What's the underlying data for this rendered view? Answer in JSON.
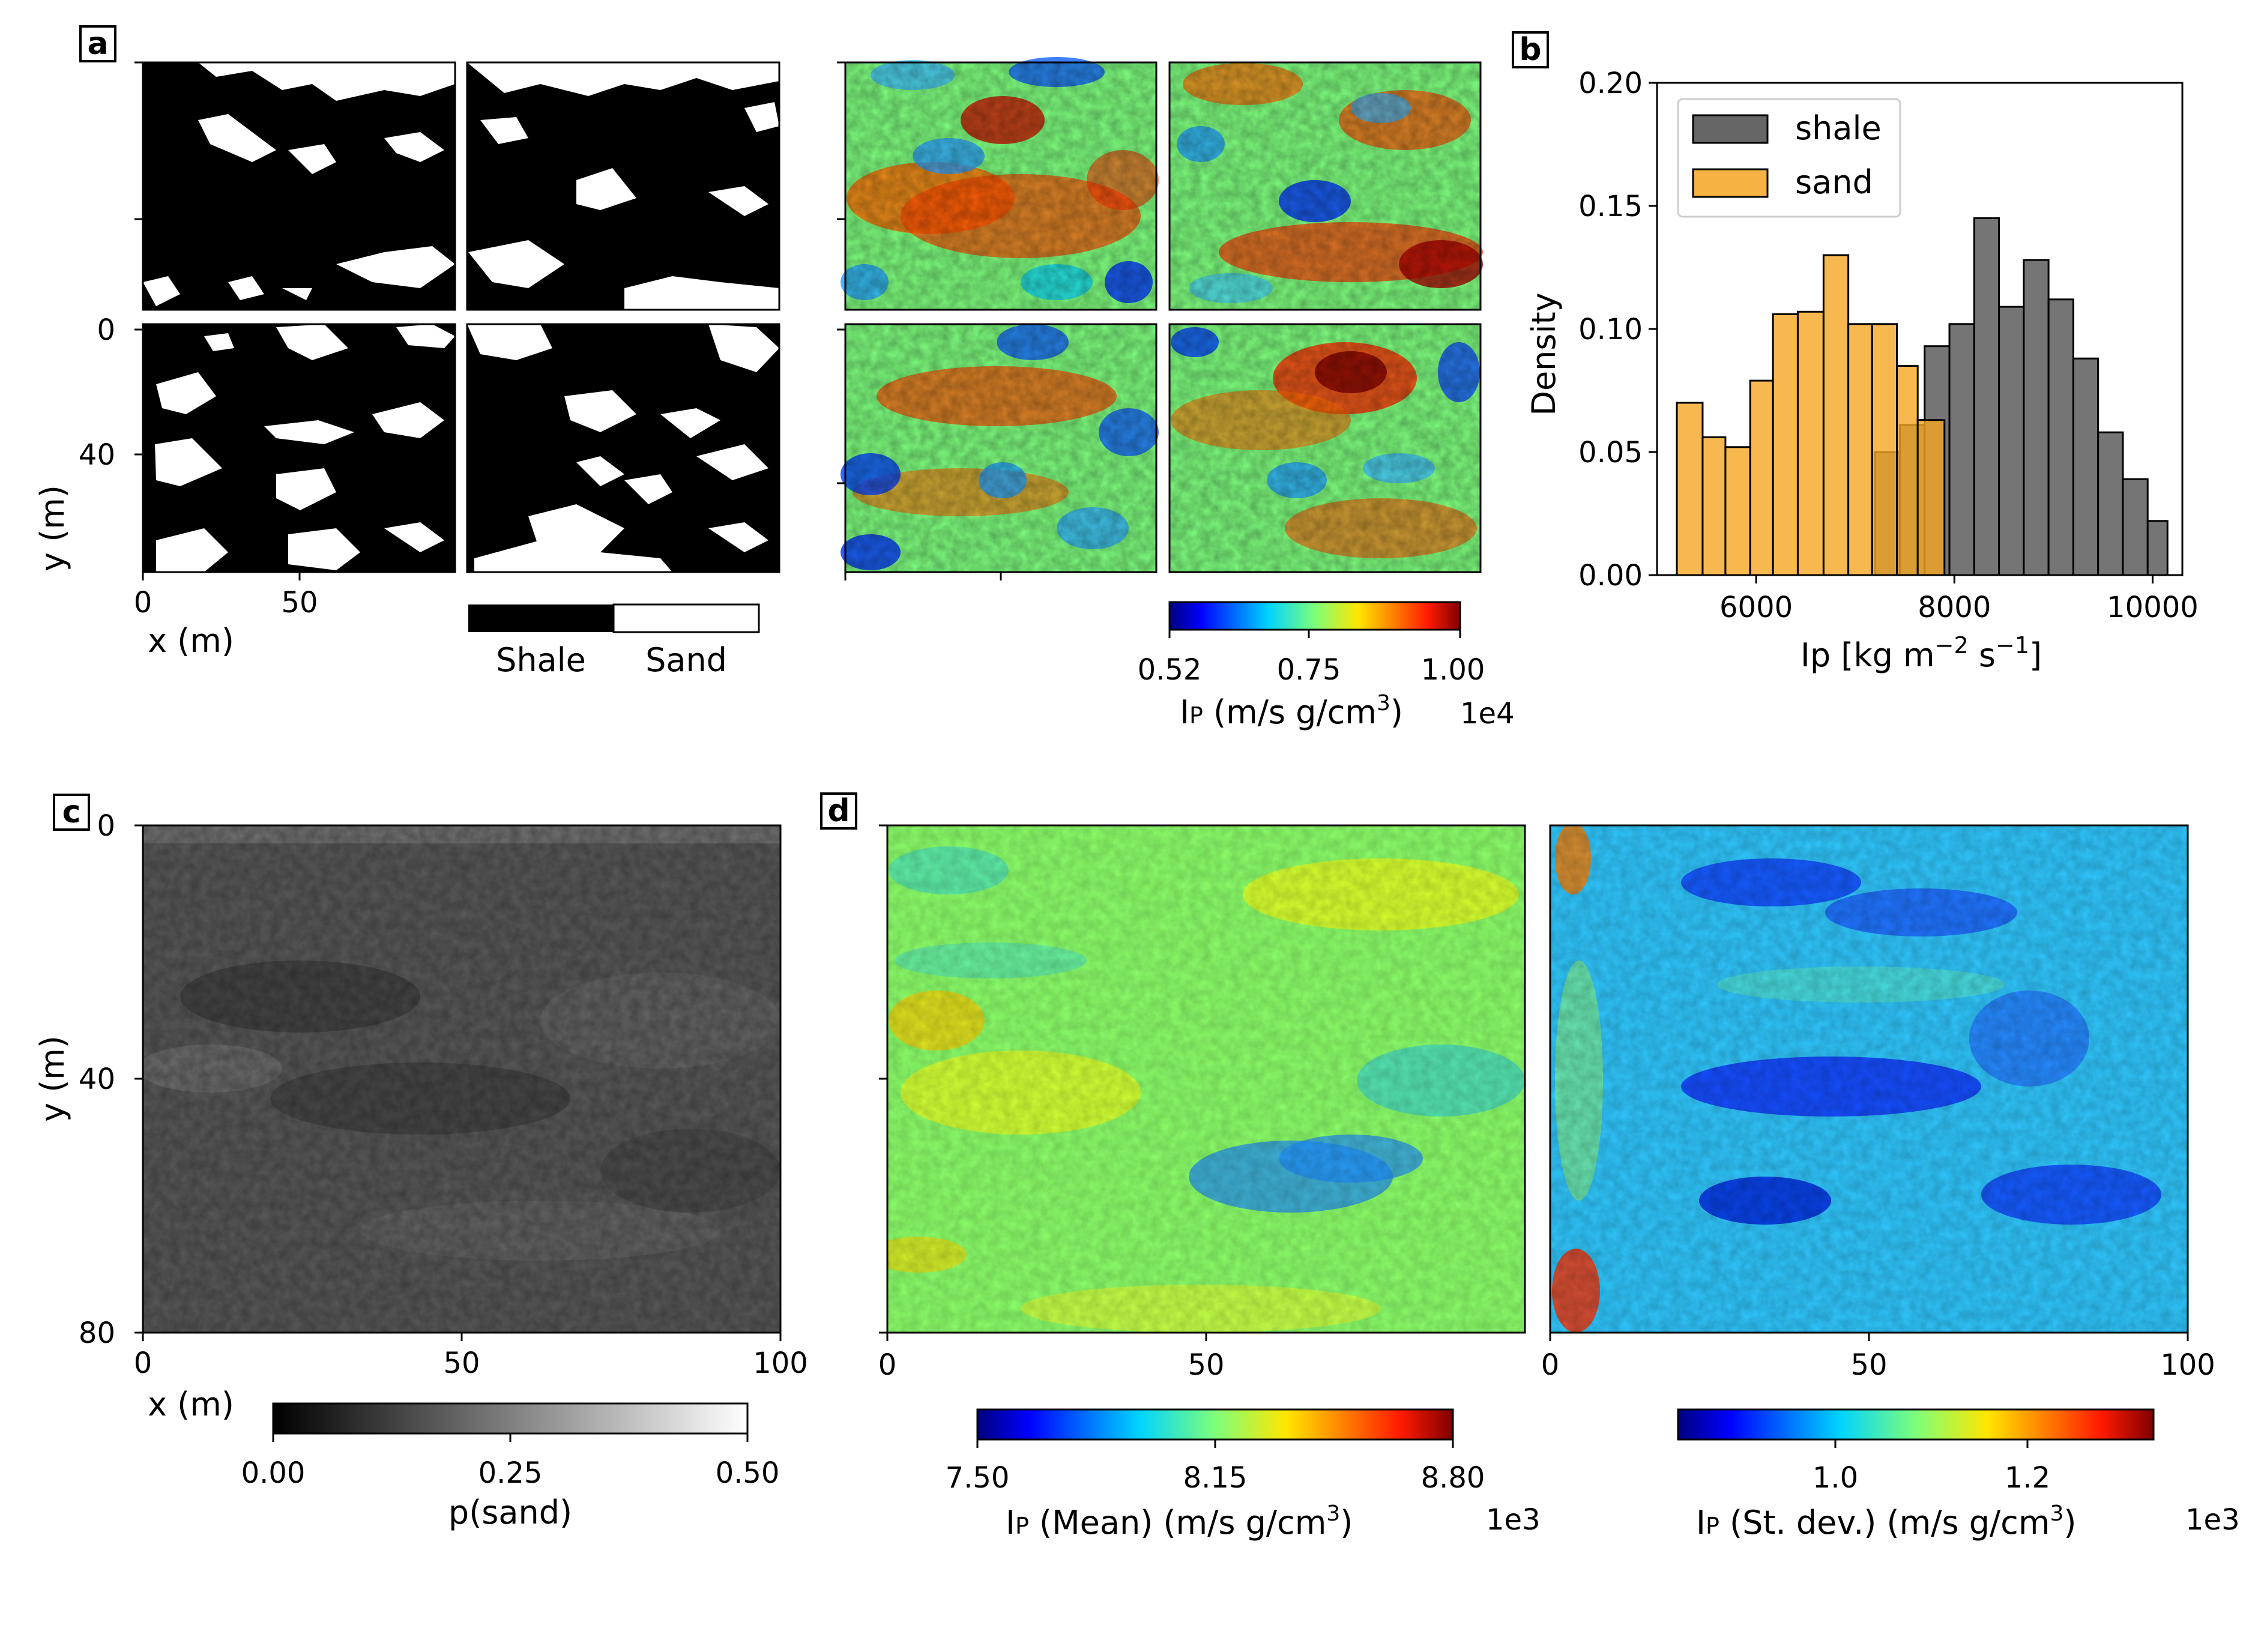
{
  "panel_labels": {
    "a": "a",
    "b": "b",
    "c": "c",
    "d": "d"
  },
  "panel_a": {
    "y_ticks": [
      "0",
      "40"
    ],
    "x_ticks": [
      "0",
      "50"
    ],
    "xlabel": "x (m)",
    "ylabel": "y (m)",
    "facies_legend": [
      "Shale",
      "Sand"
    ],
    "ip_colorbar": {
      "ticks": [
        "0.52",
        "0.75",
        "1.00"
      ],
      "label_main": "I",
      "label_sub": "P",
      "label_rest": " (m/s g/cm",
      "label_sup": "3",
      "label_end": ")",
      "offset": "1e4"
    }
  },
  "chart_data": [
    {
      "type": "bar",
      "panel": "b",
      "title": "",
      "xlabel_main": "Ip [kg m",
      "xlabel_sup1": "−2",
      "xlabel_mid": " s",
      "xlabel_sup2": "−1",
      "xlabel_end": "]",
      "ylabel": "Density",
      "xlim": [
        5000,
        10300
      ],
      "ylim": [
        0,
        0.2
      ],
      "x_ticks": [
        "6000",
        "8000",
        "10000"
      ],
      "x_tick_values": [
        6000,
        8000,
        10000
      ],
      "y_ticks": [
        "0.00",
        "0.05",
        "0.10",
        "0.15",
        "0.20"
      ],
      "y_tick_values": [
        0,
        0.05,
        0.1,
        0.15,
        0.2
      ],
      "legend_position": "upper-left",
      "series": [
        {
          "name": "shale",
          "color": "#666666",
          "bin_edges": [
            7200,
            7450,
            7700,
            7950,
            8200,
            8450,
            8700,
            8950,
            9200,
            9450,
            9700,
            9950,
            10150
          ],
          "values": [
            0.05,
            0.061,
            0.093,
            0.102,
            0.145,
            0.109,
            0.128,
            0.112,
            0.088,
            0.058,
            0.039,
            0.022
          ]
        },
        {
          "name": "sand",
          "color": "#f5a623",
          "bin_edges": [
            5200,
            5460,
            5690,
            5940,
            6170,
            6420,
            6680,
            6930,
            7170,
            7420,
            7630,
            7900
          ],
          "values": [
            0.07,
            0.056,
            0.052,
            0.079,
            0.106,
            0.107,
            0.13,
            0.102,
            0.102,
            0.085,
            0.063
          ]
        }
      ]
    },
    {
      "type": "heatmap",
      "panel": "c",
      "xlabel": "x (m)",
      "ylabel": "y (m)",
      "x_ticks": [
        "0",
        "50",
        "100"
      ],
      "y_ticks": [
        "0",
        "40",
        "80"
      ],
      "colorbar": {
        "label": "p(sand)",
        "ticks": [
          "0.00",
          "0.25",
          "0.50"
        ],
        "range": [
          0,
          0.5
        ]
      }
    },
    {
      "type": "heatmap",
      "panel": "d-mean",
      "x_ticks": [
        "0",
        "50"
      ],
      "colorbar": {
        "ticks": [
          "7.50",
          "8.15",
          "8.80"
        ],
        "label_main": "I",
        "label_sub": "P",
        "label_rest": " (Mean) (m/s g/cm",
        "label_sup": "3",
        "label_end": ")",
        "offset": "1e3"
      }
    },
    {
      "type": "heatmap",
      "panel": "d-std",
      "x_ticks": [
        "0",
        "50",
        "100"
      ],
      "colorbar": {
        "ticks": [
          "1.0",
          "1.2"
        ],
        "label_main": "I",
        "label_sub": "P",
        "label_rest": " (St. dev.) (m/s g/cm",
        "label_sup": "3",
        "label_end": ")",
        "offset": "1e3"
      }
    }
  ]
}
